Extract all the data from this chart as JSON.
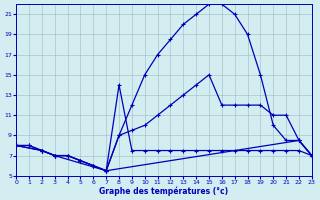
{
  "xlabel": "Graphe des températures (°c)",
  "bg_color": "#d4edf0",
  "grid_color": "#a0b8c8",
  "line_color": "#0000bb",
  "xlim": [
    0,
    23
  ],
  "ylim": [
    5,
    22
  ],
  "xticks": [
    0,
    1,
    2,
    3,
    4,
    5,
    6,
    7,
    8,
    9,
    10,
    11,
    12,
    13,
    14,
    15,
    16,
    17,
    18,
    19,
    20,
    21,
    22,
    23
  ],
  "yticks": [
    5,
    7,
    9,
    11,
    13,
    15,
    17,
    19,
    21
  ],
  "series1_x": [
    0,
    1,
    2,
    3,
    4,
    5,
    6,
    7,
    8,
    9,
    10,
    11,
    12,
    13,
    14,
    15,
    16,
    17,
    18,
    19,
    20,
    21,
    22,
    23
  ],
  "series1_y": [
    8,
    8,
    7.5,
    7,
    7,
    6.5,
    6,
    5.5,
    9,
    12,
    15,
    17,
    18.5,
    20,
    21,
    22,
    22,
    21,
    19,
    15,
    10,
    8.5,
    8.5,
    7
  ],
  "series2_x": [
    0,
    1,
    2,
    3,
    4,
    5,
    6,
    7,
    8,
    9,
    10,
    11,
    12,
    13,
    14,
    15,
    16,
    17,
    18,
    19,
    20,
    21,
    22,
    23
  ],
  "series2_y": [
    8,
    8,
    7.5,
    7,
    7,
    6.5,
    6,
    5.5,
    14,
    7.5,
    7.5,
    7.5,
    7.5,
    7.5,
    7.5,
    7.5,
    7.5,
    7.5,
    7.5,
    7.5,
    7.5,
    7.5,
    7.5,
    7
  ],
  "series3_x": [
    0,
    2,
    3,
    4,
    5,
    6,
    7,
    22,
    23
  ],
  "series3_y": [
    8,
    7.5,
    7,
    7,
    6.5,
    6,
    5.5,
    8.5,
    7
  ],
  "series4_x": [
    0,
    2,
    3,
    7,
    8,
    9,
    10,
    11,
    12,
    13,
    14,
    15,
    16,
    17,
    18,
    19,
    20,
    21,
    22,
    23
  ],
  "series4_y": [
    8,
    7.5,
    7,
    5.5,
    9,
    9.5,
    10,
    11,
    12,
    13,
    14,
    15,
    12,
    12,
    12,
    12,
    11,
    11,
    8.5,
    7
  ]
}
